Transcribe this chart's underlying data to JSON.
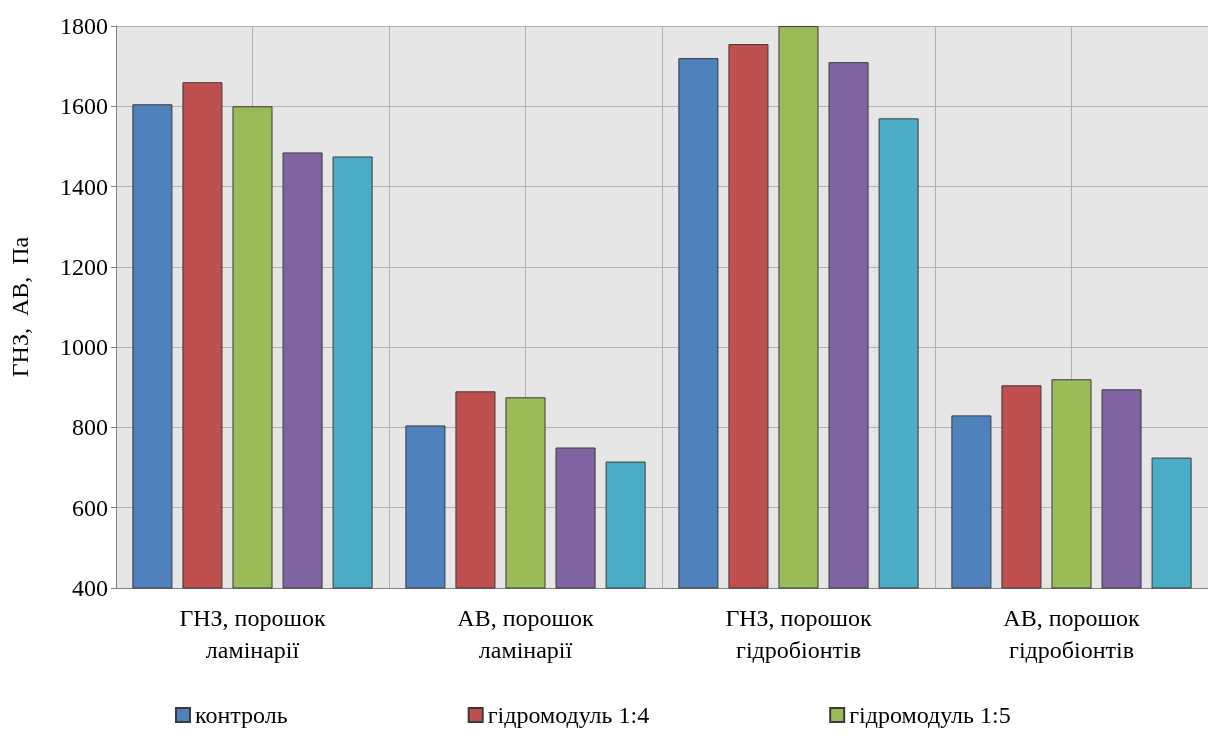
{
  "chart_data": {
    "type": "bar",
    "ylabel": "ГНЗ,  АВ,  Па",
    "categories": [
      "ГНЗ, порошок\nламінарії",
      "АВ, порошок\nламінарії",
      "ГНЗ, порошок\nгідробіонтів",
      "АВ, порошок\nгідробіонтів"
    ],
    "series": [
      {
        "name": "контроль",
        "color": "#4f81bd",
        "values": [
          1605,
          805,
          1720,
          830
        ]
      },
      {
        "name": "гідромодуль 1:4",
        "color": "#c0504d",
        "values": [
          1660,
          890,
          1755,
          905
        ]
      },
      {
        "name": "гідромодуль 1:5",
        "color": "#9bbb59",
        "values": [
          1600,
          875,
          1800,
          920
        ]
      },
      {
        "color": "#8064a2",
        "values": [
          1485,
          750,
          1710,
          895
        ]
      },
      {
        "color": "#4bacc6",
        "values": [
          1475,
          715,
          1570,
          725
        ]
      }
    ],
    "ylim": [
      400,
      1800
    ],
    "yticks": [
      400,
      600,
      800,
      1000,
      1200,
      1400,
      1600,
      1800
    ],
    "grid": true,
    "legend": "bottom"
  }
}
